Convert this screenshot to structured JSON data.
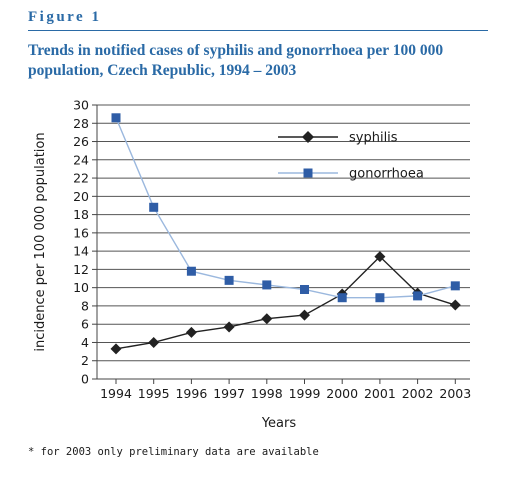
{
  "figure_label": "Figure 1",
  "title": "Trends in notified cases of syphilis and gonorrhoea per 100 000 population, Czech Republic, 1994 – 2003",
  "footnote": "* for 2003 only preliminary data are available",
  "chart_data": {
    "type": "line",
    "x": [
      1994,
      1995,
      1996,
      1997,
      1998,
      1999,
      2000,
      2001,
      2002,
      2003
    ],
    "xlabel": "Years",
    "ylabel": "incidence per 100 000 population",
    "ylim": [
      0,
      30
    ],
    "yticks": [
      0,
      2,
      4,
      6,
      8,
      10,
      12,
      14,
      16,
      18,
      20,
      22,
      24,
      26,
      28,
      30
    ],
    "grid": "horizontal",
    "legend_position": "top-right",
    "series": [
      {
        "name": "syphilis",
        "color": "#222222",
        "marker": "diamond",
        "values": [
          3.3,
          4.0,
          5.1,
          5.7,
          6.6,
          7.0,
          9.3,
          13.4,
          9.4,
          8.1
        ]
      },
      {
        "name": "gonorrhoea",
        "color": "#2f5da6",
        "line_color": "#9bb8de",
        "marker": "square",
        "values": [
          28.6,
          18.8,
          11.8,
          10.8,
          10.3,
          9.8,
          8.9,
          8.9,
          9.1,
          10.2
        ]
      }
    ]
  }
}
